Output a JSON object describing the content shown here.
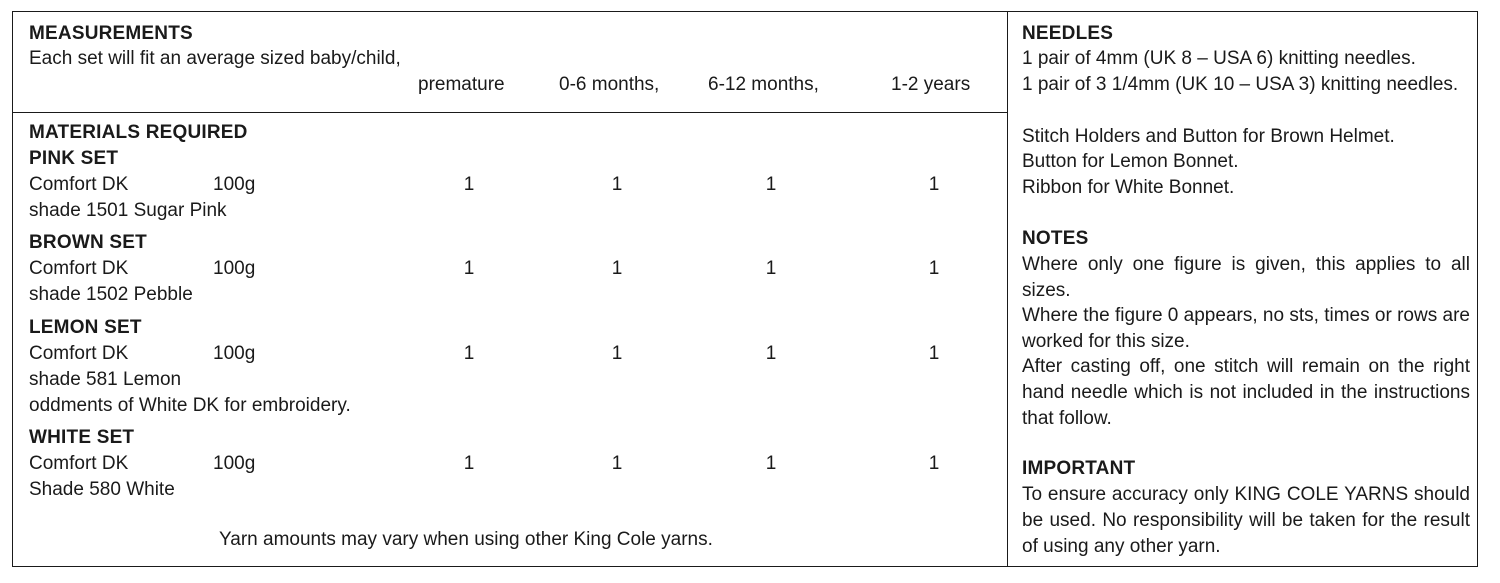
{
  "measurements": {
    "heading": "MEASUREMENTS",
    "intro": "Each set will fit an average sized baby/child,",
    "sizes": [
      "premature",
      "0-6 months,",
      "6-12 months,",
      "1-2 years"
    ]
  },
  "materials": {
    "heading": "MATERIALS REQUIRED",
    "sets": [
      {
        "name": "PINK SET",
        "yarn": "Comfort DK",
        "weight": "100g",
        "shade": "shade 1501 Sugar Pink",
        "extra": "",
        "quantities": [
          "1",
          "1",
          "1",
          "1"
        ]
      },
      {
        "name": "BROWN SET",
        "yarn": "Comfort DK",
        "weight": "100g",
        "shade": "shade 1502 Pebble",
        "extra": "",
        "quantities": [
          "1",
          "1",
          "1",
          "1"
        ]
      },
      {
        "name": "LEMON SET",
        "yarn": "Comfort DK",
        "weight": "100g",
        "shade": "shade 581 Lemon",
        "extra": "oddments of White DK for embroidery.",
        "quantities": [
          "1",
          "1",
          "1",
          "1"
        ]
      },
      {
        "name": "WHITE SET",
        "yarn": "Comfort DK",
        "weight": "100g",
        "shade": "Shade 580 White",
        "extra": "",
        "quantities": [
          "1",
          "1",
          "1",
          "1"
        ]
      }
    ],
    "footnote": "Yarn amounts may vary when using other King Cole yarns."
  },
  "needles": {
    "heading": "NEEDLES",
    "lines": [
      "1 pair of 4mm (UK 8 – USA 6) knitting needles.",
      "1 pair of 3 1/4mm (UK 10 – USA 3) knitting needles.",
      "Stitch Holders and Button for Brown Helmet.",
      "Button for Lemon Bonnet.",
      "Ribbon for White Bonnet."
    ]
  },
  "notes": {
    "heading": "NOTES",
    "paragraphs": [
      "Where only one figure is given, this applies to all sizes.",
      "Where the figure 0 appears, no sts, times or rows are worked for this size.",
      "After casting off, one stitch will remain on the right hand needle which is not included in the instructions that follow."
    ]
  },
  "important": {
    "heading": "IMPORTANT",
    "text": "To ensure accuracy only KING COLE YARNS should be used. No responsibility will be taken for the result of using any other yarn."
  }
}
